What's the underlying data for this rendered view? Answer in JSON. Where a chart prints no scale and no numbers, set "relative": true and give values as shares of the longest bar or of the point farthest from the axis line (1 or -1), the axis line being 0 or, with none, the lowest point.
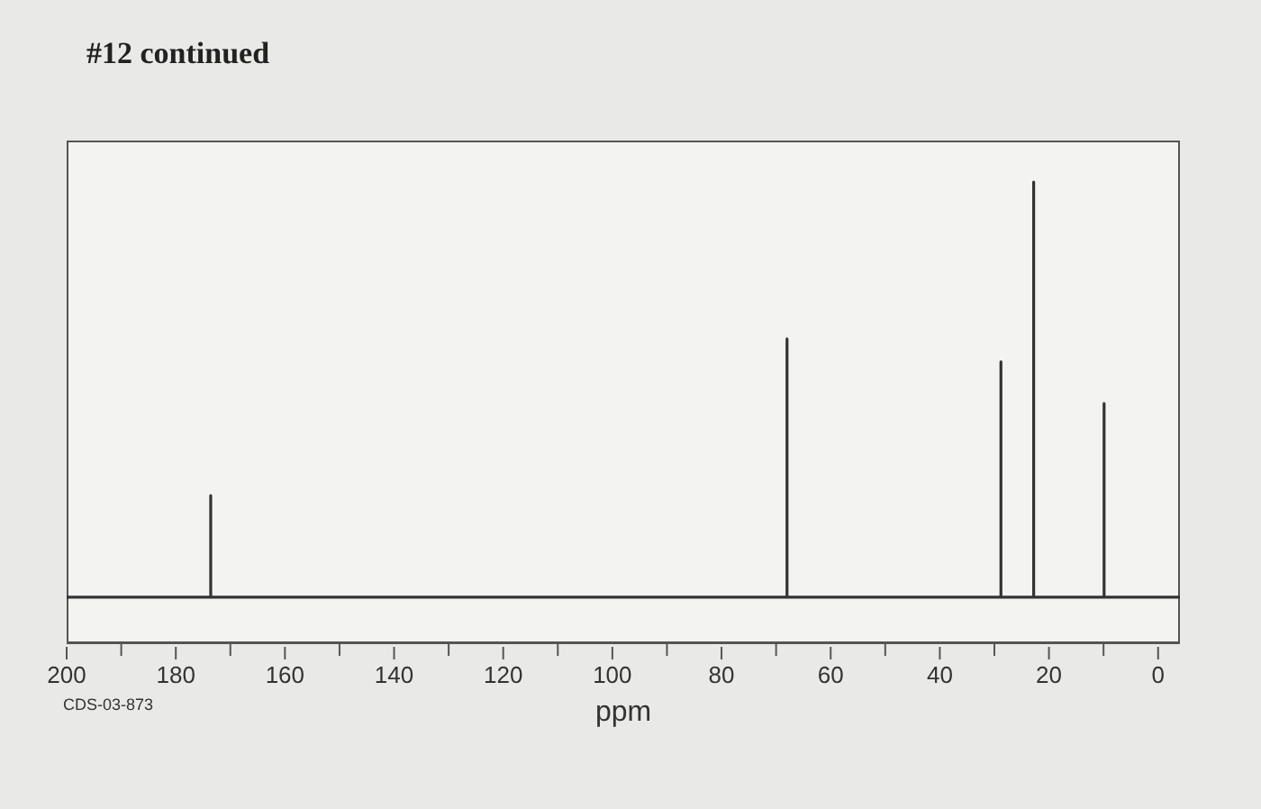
{
  "chart_data": {
    "type": "line",
    "title": "#12 continued",
    "xlabel": "ppm",
    "annotations": [
      "CDS-03-873"
    ],
    "relative": true,
    "marker": "none",
    "line_style": "solid",
    "xlim": [
      200,
      -4
    ],
    "xticks": [
      200,
      180,
      160,
      140,
      120,
      100,
      80,
      60,
      40,
      20,
      0
    ],
    "series": [
      {
        "color": "#333333",
        "x": [
          200,
          173.6,
          173.6,
          173.6,
          68,
          68,
          68,
          28.8,
          28.8,
          28.8,
          22.8,
          22.8,
          22.8,
          9.9,
          9.9,
          9.9,
          -4
        ],
        "values": [
          0.1,
          0.1,
          0.32,
          0.1,
          0.1,
          0.66,
          0.1,
          0.1,
          0.61,
          0.1,
          0.1,
          1,
          0.1,
          0.1,
          0.52,
          0.1,
          0.1
        ]
      }
    ]
  }
}
